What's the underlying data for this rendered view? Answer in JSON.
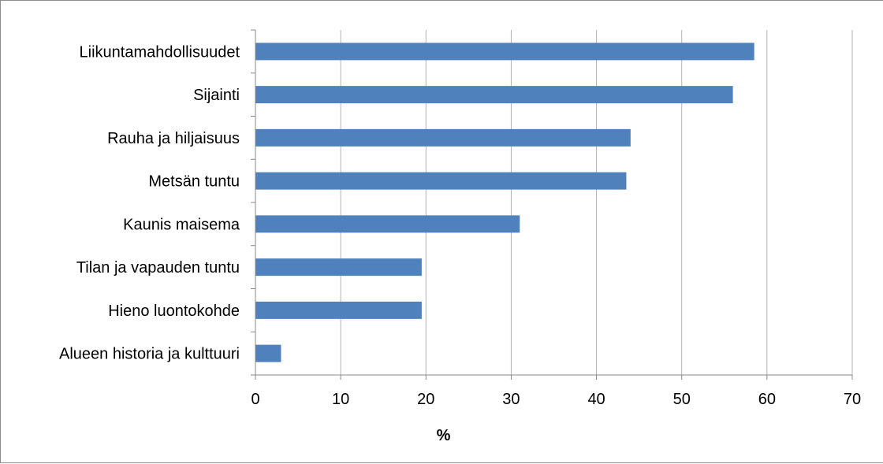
{
  "chart_data": {
    "type": "bar",
    "orientation": "horizontal",
    "categories": [
      "Liikuntamahdollisuudet",
      "Sijainti",
      "Rauha ja hiljaisuus",
      "Metsän tuntu",
      "Kaunis maisema",
      "Tilan ja vapauden tuntu",
      "Hieno luontokohde",
      "Alueen historia ja kulttuuri"
    ],
    "values": [
      58.5,
      56,
      44,
      43.5,
      31,
      19.5,
      19.5,
      3
    ],
    "xlabel": "%",
    "xlim": [
      0,
      70
    ],
    "xticks": [
      0,
      10,
      20,
      30,
      40,
      50,
      60,
      70
    ],
    "grid": true,
    "bar_color": "#4f81bd",
    "grid_color": "#b3b3b3"
  }
}
